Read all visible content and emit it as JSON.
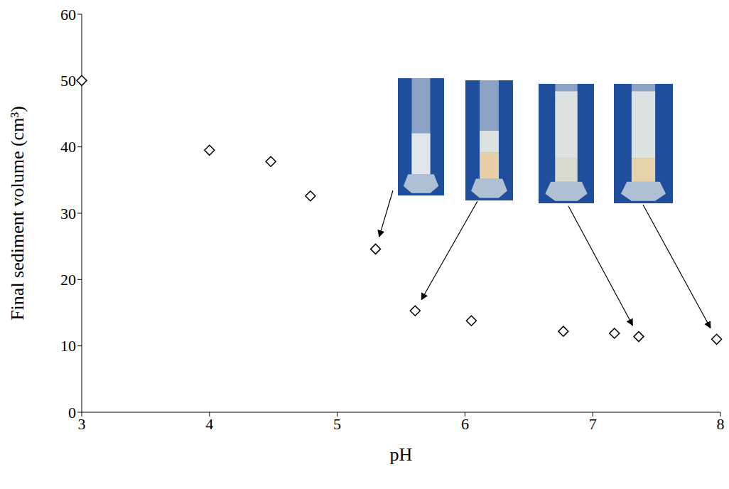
{
  "chart_data": {
    "type": "scatter",
    "x_label": "pH",
    "y_label": "Final sediment volume (cm³)",
    "x": [
      3,
      4,
      4.48,
      4.79,
      5.3,
      5.61,
      6.05,
      6.77,
      7.17,
      7.36,
      7.97
    ],
    "values": [
      50,
      39.5,
      37.8,
      32.6,
      24.6,
      15.3,
      13.8,
      12.2,
      11.9,
      11.4,
      11.0
    ],
    "xlim": [
      3,
      8
    ],
    "ylim": [
      0,
      60
    ],
    "xticks": [
      3,
      4,
      5,
      6,
      7,
      8
    ],
    "yticks": [
      0,
      10,
      20,
      30,
      40,
      50,
      60
    ],
    "grid": false,
    "marker": "diamond",
    "color": "#000000"
  }
}
